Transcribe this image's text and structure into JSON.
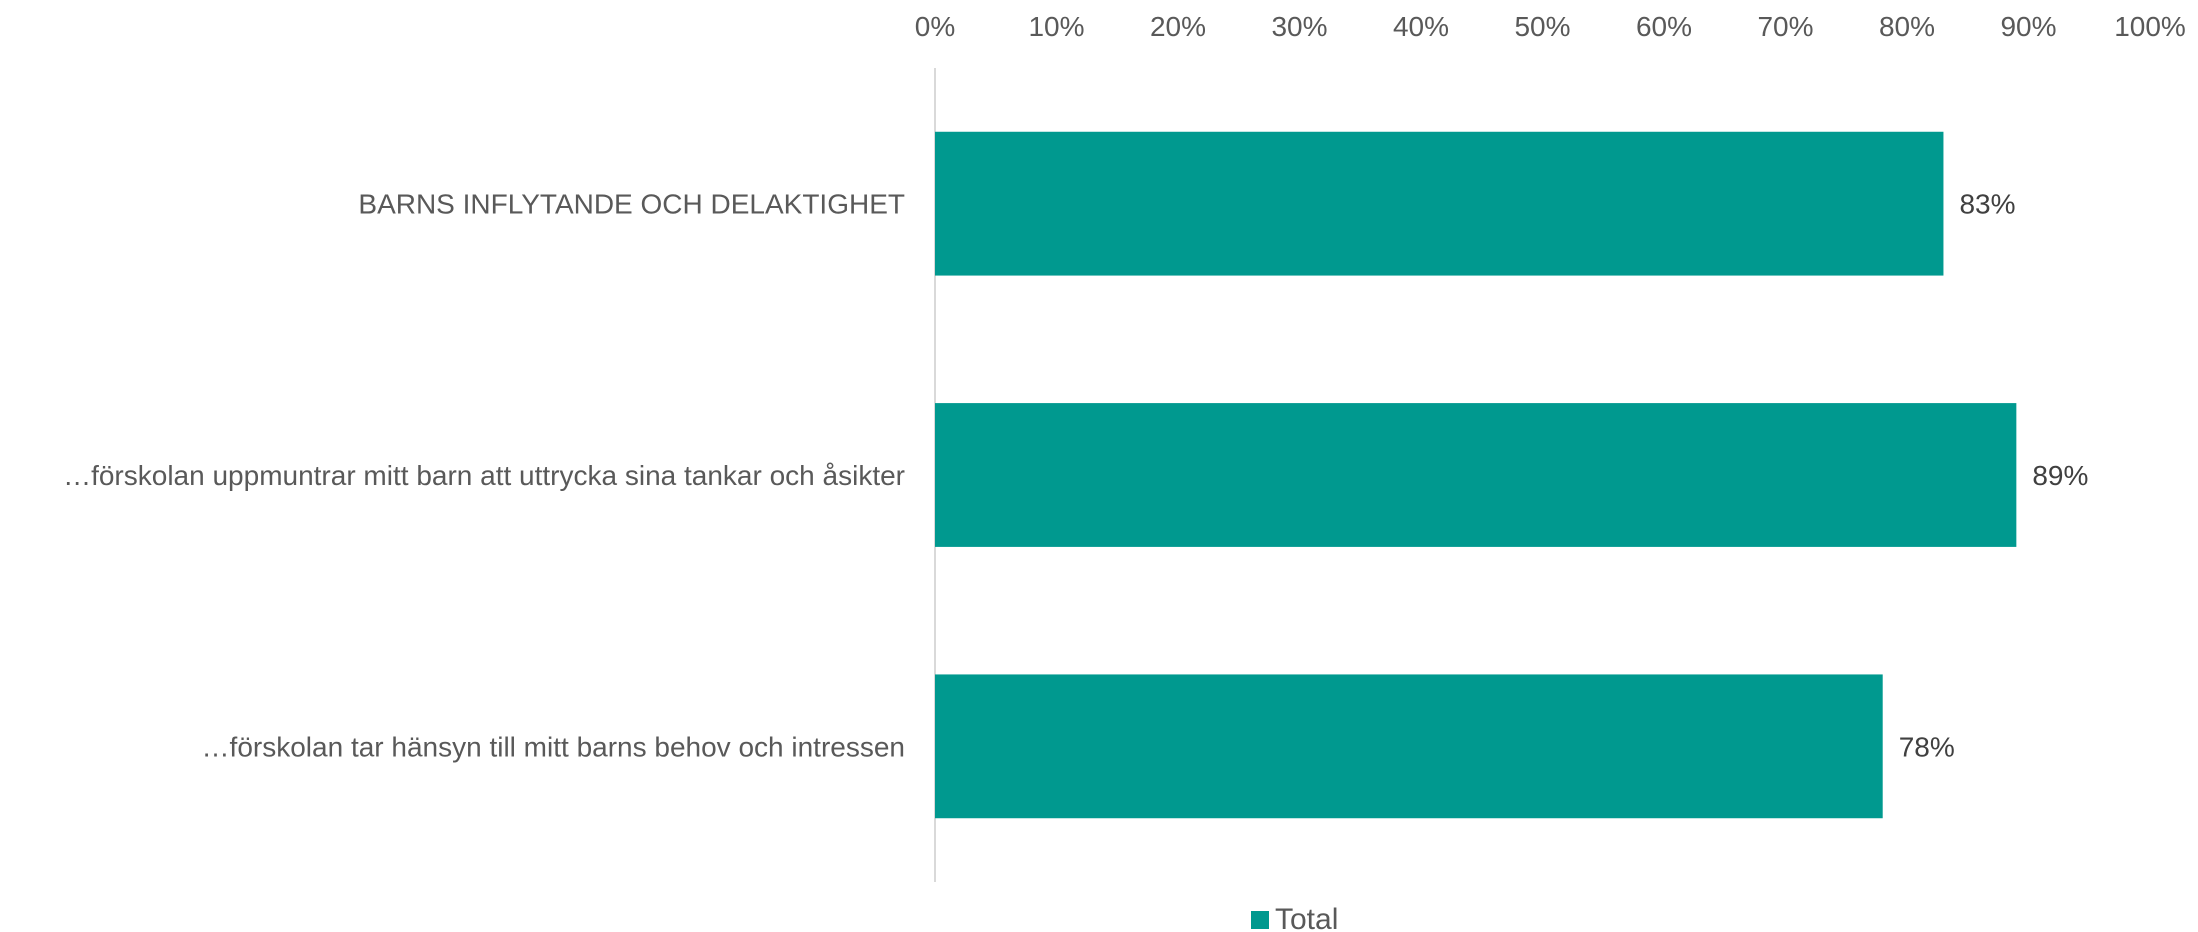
{
  "chart_data": {
    "type": "bar",
    "orientation": "horizontal",
    "categories": [
      "BARNS INFLYTANDE OCH DELAKTIGHET",
      "…förskolan uppmuntrar mitt barn att uttrycka sina tankar och åsikter",
      "…förskolan tar hänsyn till mitt barns behov och intressen"
    ],
    "series": [
      {
        "name": "Total",
        "color": "#00998F",
        "values": [
          83,
          89,
          78
        ],
        "labels": [
          "83%",
          "89%",
          "78%"
        ]
      }
    ],
    "x_ticks": [
      "0%",
      "10%",
      "20%",
      "30%",
      "40%",
      "50%",
      "60%",
      "70%",
      "80%",
      "90%",
      "100%"
    ],
    "xlim": [
      0,
      100
    ],
    "axis_position": "top",
    "grid": false,
    "legend": {
      "position": "bottom",
      "entries": [
        "Total"
      ]
    },
    "title": "",
    "xlabel": "",
    "ylabel": ""
  }
}
